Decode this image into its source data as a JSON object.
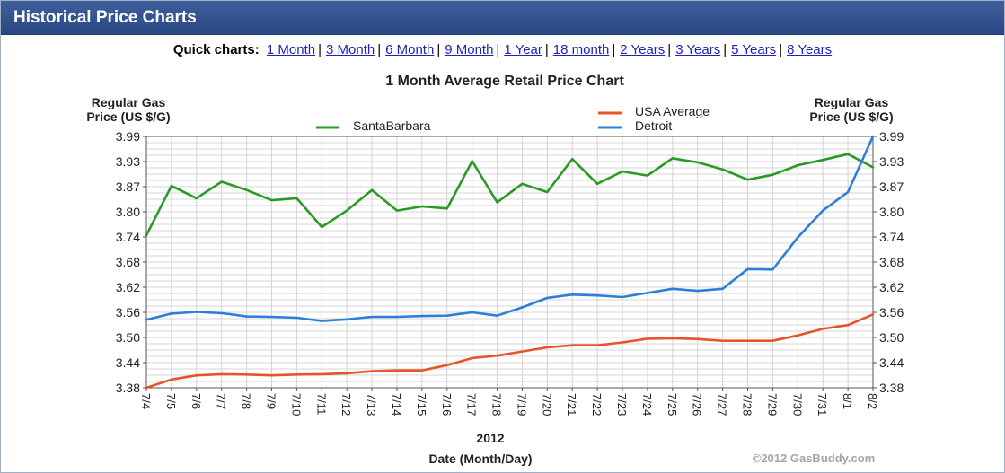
{
  "header": {
    "title": "Historical Price Charts"
  },
  "quick_charts": {
    "label": "Quick charts:",
    "links": [
      "1 Month",
      "3 Month",
      "6 Month",
      "9 Month",
      "1 Year",
      "18 month",
      "2 Years",
      "3 Years",
      "5 Years",
      "8 Years"
    ]
  },
  "colors": {
    "SantaBarbara": "#2a9a24",
    "USA Average": "#e8542a",
    "Detroit": "#2c7fd6"
  },
  "chart_data": {
    "type": "line",
    "title": "1 Month Average Retail Price Chart",
    "ylabel_left": [
      "Regular Gas",
      "Price (US $/G)"
    ],
    "ylabel_right": [
      "Regular Gas",
      "Price (US $/G)"
    ],
    "xlabel": "Date (Month/Day)",
    "year_label": "2012",
    "copyright": "©2012 GasBuddy.com",
    "ylim": [
      3.38,
      3.99
    ],
    "yticks": [
      "3.38",
      "3.44",
      "3.50",
      "3.56",
      "3.62",
      "3.68",
      "3.74",
      "3.80",
      "3.87",
      "3.93",
      "3.99"
    ],
    "grid": true,
    "categories": [
      "7/4",
      "7/5",
      "7/6",
      "7/7",
      "7/8",
      "7/9",
      "7/10",
      "7/11",
      "7/12",
      "7/13",
      "7/14",
      "7/15",
      "7/16",
      "7/17",
      "7/18",
      "7/19",
      "7/20",
      "7/21",
      "7/22",
      "7/23",
      "7/24",
      "7/25",
      "7/26",
      "7/27",
      "7/28",
      "7/29",
      "7/30",
      "7/31",
      "8/1",
      "8/2"
    ],
    "series": [
      {
        "name": "SantaBarbara",
        "values": [
          3.75,
          3.87,
          3.84,
          3.88,
          3.86,
          3.835,
          3.84,
          3.77,
          3.81,
          3.86,
          3.81,
          3.82,
          3.815,
          3.93,
          3.83,
          3.875,
          3.855,
          3.935,
          3.875,
          3.905,
          3.895,
          3.937,
          3.927,
          3.91,
          3.885,
          3.897,
          3.92,
          3.933,
          3.947,
          3.915
        ]
      },
      {
        "name": "USA Average",
        "values": [
          3.38,
          3.4,
          3.41,
          3.413,
          3.412,
          3.41,
          3.412,
          3.413,
          3.415,
          3.42,
          3.422,
          3.422,
          3.435,
          3.452,
          3.458,
          3.468,
          3.478,
          3.483,
          3.483,
          3.49,
          3.499,
          3.5,
          3.498,
          3.494,
          3.494,
          3.494,
          3.507,
          3.523,
          3.532,
          3.558
        ]
      },
      {
        "name": "Detroit",
        "values": [
          3.545,
          3.56,
          3.564,
          3.561,
          3.553,
          3.552,
          3.55,
          3.542,
          3.546,
          3.552,
          3.552,
          3.554,
          3.555,
          3.563,
          3.555,
          3.575,
          3.598,
          3.606,
          3.604,
          3.6,
          3.61,
          3.62,
          3.615,
          3.62,
          3.668,
          3.667,
          3.745,
          3.81,
          3.855,
          3.99
        ]
      }
    ],
    "legend": "top"
  }
}
